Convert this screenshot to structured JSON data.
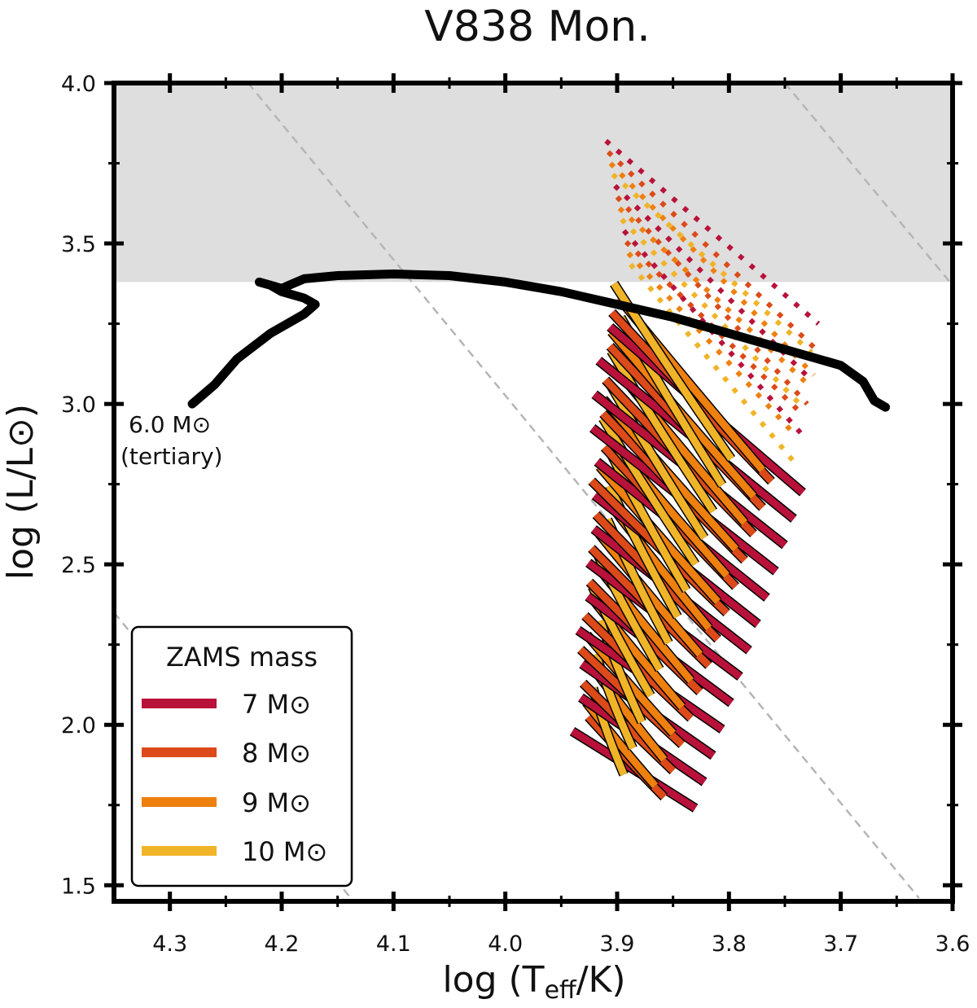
{
  "chart_data": {
    "type": "line",
    "title": "V838 Mon.",
    "xlabel_main": "log (T",
    "xlabel_sub": "eff",
    "xlabel_end": "/K)",
    "ylabel": "log (L/L⊙)",
    "x_reversed": true,
    "xlim": [
      4.35,
      3.6
    ],
    "ylim": [
      1.45,
      4.0
    ],
    "x_ticks": [
      4.3,
      4.2,
      4.1,
      4.0,
      3.9,
      3.8,
      3.7,
      3.6
    ],
    "x_tick_labels": [
      "4.3",
      "4.2",
      "4.1",
      "4.0",
      "3.9",
      "3.8",
      "3.7",
      "3.6"
    ],
    "y_ticks": [
      1.5,
      2.0,
      2.5,
      3.0,
      3.5,
      4.0
    ],
    "y_tick_labels": [
      "1.5",
      "2.0",
      "2.5",
      "3.0",
      "3.5",
      "4.0"
    ],
    "shaded_region": {
      "y_from": 3.38,
      "y_to": 4.0,
      "color": "#dedede"
    },
    "dashed_lines": [
      {
        "points": [
          [
            4.35,
            2.35
          ],
          [
            4.1,
            1.3
          ]
        ]
      },
      {
        "points": [
          [
            4.23,
            4.0
          ],
          [
            3.63,
            1.46
          ]
        ]
      },
      {
        "points": [
          [
            3.75,
            4.0
          ],
          [
            3.6,
            3.37
          ]
        ]
      }
    ],
    "tertiary_track": {
      "name": "6.0 M⊙ (tertiary)",
      "color": "#000000",
      "points": [
        [
          4.28,
          3.0
        ],
        [
          4.26,
          3.06
        ],
        [
          4.24,
          3.14
        ],
        [
          4.21,
          3.22
        ],
        [
          4.18,
          3.28
        ],
        [
          4.17,
          3.31
        ],
        [
          4.18,
          3.33
        ],
        [
          4.2,
          3.35
        ],
        [
          4.21,
          3.37
        ],
        [
          4.22,
          3.38
        ],
        [
          4.2,
          3.36
        ],
        [
          4.18,
          3.39
        ],
        [
          4.15,
          3.4
        ],
        [
          4.1,
          3.405
        ],
        [
          4.05,
          3.4
        ],
        [
          4.0,
          3.38
        ],
        [
          3.95,
          3.35
        ],
        [
          3.9,
          3.31
        ],
        [
          3.85,
          3.27
        ],
        [
          3.8,
          3.22
        ],
        [
          3.75,
          3.17
        ],
        [
          3.7,
          3.12
        ],
        [
          3.68,
          3.07
        ],
        [
          3.67,
          3.01
        ],
        [
          3.66,
          2.99
        ]
      ]
    },
    "annotation_mass": "6.0 M⊙",
    "annotation_note": "(tertiary)",
    "legend_title": "ZAMS mass",
    "series": [
      {
        "name": "7 M⊙",
        "color": "#b8123a"
      },
      {
        "name": "8 M⊙",
        "color": "#dc4a1a"
      },
      {
        "name": "9 M⊙",
        "color": "#ee800f"
      },
      {
        "name": "10 M⊙",
        "color": "#f0b428"
      }
    ]
  }
}
